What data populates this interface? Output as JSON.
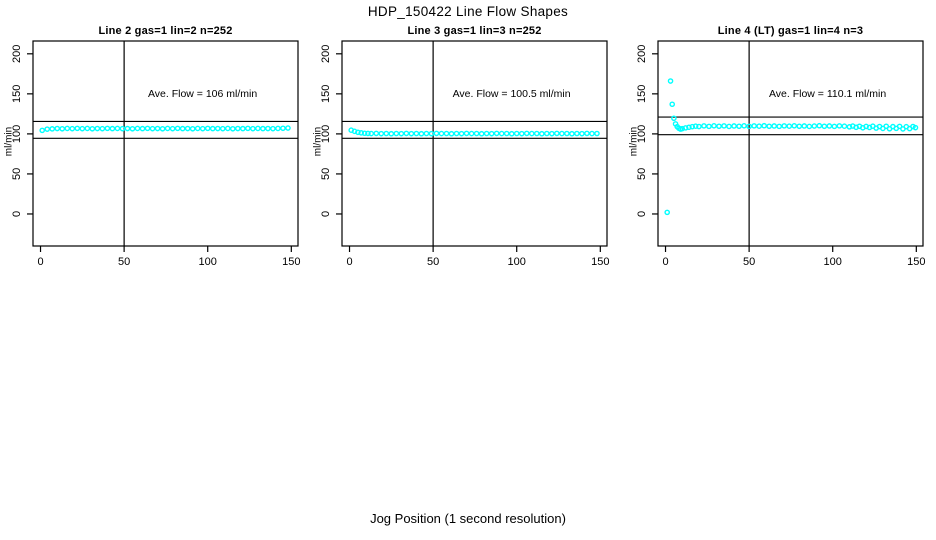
{
  "figure": {
    "title": "HDP_150422  Line Flow Shapes",
    "xlabel": "Jog Position (1 second resolution)",
    "colors": {
      "points": "#00FFFF",
      "axis": "#000000",
      "background": "#FFFFFF"
    }
  },
  "chart_data": [
    {
      "type": "scatter",
      "title": "Line 2 gas=1 lin=2 n=252",
      "annotation": "Ave. Flow =  106  ml/min",
      "ave_flow": 106,
      "ylabel": "ml/min",
      "xlim": [
        -4.5,
        154
      ],
      "ylim": [
        -40,
        216
      ],
      "xticks": [
        0,
        50,
        100,
        150
      ],
      "yticks": [
        0,
        50,
        100,
        150,
        200
      ],
      "vline": 50,
      "hlines": [
        115.5,
        94.5
      ],
      "grid": false,
      "points": [
        [
          1,
          104.4
        ],
        [
          4,
          105.9
        ],
        [
          7,
          106.3
        ],
        [
          10,
          106.7
        ],
        [
          13,
          106.4
        ],
        [
          16,
          106.8
        ],
        [
          19,
          106.5
        ],
        [
          22,
          106.9
        ],
        [
          25,
          106.5
        ],
        [
          28,
          106.8
        ],
        [
          31,
          106.4
        ],
        [
          34,
          106.7
        ],
        [
          37,
          106.5
        ],
        [
          40,
          106.9
        ],
        [
          43,
          106.6
        ],
        [
          46,
          106.8
        ],
        [
          49,
          106.5
        ],
        [
          52,
          106.7
        ],
        [
          55,
          106.4
        ],
        [
          58,
          106.8
        ],
        [
          61,
          106.6
        ],
        [
          64,
          106.9
        ],
        [
          67,
          106.5
        ],
        [
          70,
          106.7
        ],
        [
          73,
          106.4
        ],
        [
          76,
          106.8
        ],
        [
          79,
          106.5
        ],
        [
          82,
          106.9
        ],
        [
          85,
          106.6
        ],
        [
          88,
          106.7
        ],
        [
          91,
          106.4
        ],
        [
          94,
          106.8
        ],
        [
          97,
          106.5
        ],
        [
          100,
          106.9
        ],
        [
          103,
          106.6
        ],
        [
          106,
          106.7
        ],
        [
          109,
          106.5
        ],
        [
          112,
          106.8
        ],
        [
          115,
          106.4
        ],
        [
          118,
          106.7
        ],
        [
          121,
          106.6
        ],
        [
          124,
          106.9
        ],
        [
          127,
          106.5
        ],
        [
          130,
          106.8
        ],
        [
          133,
          106.6
        ],
        [
          136,
          106.7
        ],
        [
          139,
          106.5
        ],
        [
          142,
          106.8
        ],
        [
          145,
          107.0
        ],
        [
          148,
          107.3
        ]
      ]
    },
    {
      "type": "scatter",
      "title": "Line 3 gas=1 lin=3 n=252",
      "annotation": "Ave. Flow =  100.5  ml/min",
      "ave_flow": 100.5,
      "ylabel": "ml/min",
      "xlim": [
        -4.5,
        154
      ],
      "ylim": [
        -40,
        216
      ],
      "xticks": [
        0,
        50,
        100,
        150
      ],
      "yticks": [
        0,
        50,
        100,
        150,
        200
      ],
      "vline": 50,
      "hlines": [
        115.5,
        94.5
      ],
      "grid": false,
      "points": [
        [
          1,
          104.6
        ],
        [
          3,
          103.2
        ],
        [
          5,
          102.0
        ],
        [
          7,
          101.3
        ],
        [
          9,
          100.8
        ],
        [
          11,
          100.6
        ],
        [
          13,
          100.4
        ],
        [
          16,
          100.6
        ],
        [
          19,
          100.3
        ],
        [
          22,
          100.5
        ],
        [
          25,
          100.2
        ],
        [
          28,
          100.5
        ],
        [
          31,
          100.3
        ],
        [
          34,
          100.6
        ],
        [
          37,
          100.3
        ],
        [
          40,
          100.5
        ],
        [
          43,
          100.2
        ],
        [
          46,
          100.5
        ],
        [
          49,
          100.3
        ],
        [
          52,
          100.6
        ],
        [
          55,
          100.4
        ],
        [
          58,
          100.5
        ],
        [
          61,
          100.2
        ],
        [
          64,
          100.5
        ],
        [
          67,
          100.3
        ],
        [
          70,
          100.6
        ],
        [
          73,
          100.4
        ],
        [
          76,
          100.5
        ],
        [
          79,
          100.2
        ],
        [
          82,
          100.5
        ],
        [
          85,
          100.3
        ],
        [
          88,
          100.6
        ],
        [
          91,
          100.4
        ],
        [
          94,
          100.5
        ],
        [
          97,
          100.2
        ],
        [
          100,
          100.5
        ],
        [
          103,
          100.3
        ],
        [
          106,
          100.6
        ],
        [
          109,
          100.4
        ],
        [
          112,
          100.5
        ],
        [
          115,
          100.2
        ],
        [
          118,
          100.5
        ],
        [
          121,
          100.3
        ],
        [
          124,
          100.6
        ],
        [
          127,
          100.4
        ],
        [
          130,
          100.5
        ],
        [
          133,
          100.2
        ],
        [
          136,
          100.5
        ],
        [
          139,
          100.3
        ],
        [
          142,
          100.6
        ],
        [
          145,
          100.4
        ],
        [
          148,
          100.5
        ]
      ]
    },
    {
      "type": "scatter",
      "title": "Line 4 (LT) gas=1 lin=4 n=3",
      "annotation": "Ave. Flow =  110.1  ml/min",
      "ave_flow": 110.1,
      "ylabel": "ml/min",
      "xlim": [
        -4.5,
        154
      ],
      "ylim": [
        -40,
        216
      ],
      "xticks": [
        0,
        50,
        100,
        150
      ],
      "yticks": [
        0,
        50,
        100,
        150,
        200
      ],
      "vline": 50,
      "hlines": [
        121,
        99
      ],
      "grid": false,
      "points": [
        [
          1,
          2
        ],
        [
          3,
          166
        ],
        [
          4,
          137
        ],
        [
          5,
          119.5
        ],
        [
          6,
          112.5
        ],
        [
          7,
          109
        ],
        [
          8,
          107
        ],
        [
          9,
          106
        ],
        [
          10,
          106.5
        ],
        [
          12,
          107.5
        ],
        [
          14,
          108.3
        ],
        [
          16,
          109
        ],
        [
          18,
          109.6
        ],
        [
          20,
          109.2
        ],
        [
          23,
          110
        ],
        [
          26,
          109.4
        ],
        [
          29,
          110.1
        ],
        [
          32,
          109.5
        ],
        [
          35,
          110
        ],
        [
          38,
          109.3
        ],
        [
          41,
          109.9
        ],
        [
          44,
          109.5
        ],
        [
          47,
          110.1
        ],
        [
          50,
          109.4
        ],
        [
          53,
          110
        ],
        [
          56,
          109.6
        ],
        [
          59,
          110.2
        ],
        [
          62,
          109.5
        ],
        [
          65,
          109.9
        ],
        [
          68,
          109.4
        ],
        [
          71,
          110
        ],
        [
          74,
          109.6
        ],
        [
          77,
          110.1
        ],
        [
          80,
          109.5
        ],
        [
          83,
          109.9
        ],
        [
          86,
          109.3
        ],
        [
          89,
          109.8
        ],
        [
          92,
          110.2
        ],
        [
          95,
          109.5
        ],
        [
          98,
          109.9
        ],
        [
          101,
          109.4
        ],
        [
          104,
          110
        ],
        [
          107,
          109.6
        ],
        [
          110,
          108.8
        ],
        [
          112,
          109.8
        ],
        [
          114,
          108.2
        ],
        [
          116,
          109.5
        ],
        [
          118,
          107.6
        ],
        [
          120,
          109.3
        ],
        [
          122,
          108.0
        ],
        [
          124,
          109.6
        ],
        [
          126,
          107.2
        ],
        [
          128,
          109.2
        ],
        [
          130,
          106.8
        ],
        [
          132,
          109.5
        ],
        [
          134,
          106.4
        ],
        [
          136,
          109.1
        ],
        [
          138,
          106.9
        ],
        [
          140,
          109.4
        ],
        [
          142,
          106.2
        ],
        [
          144,
          109.0
        ],
        [
          146,
          106.6
        ],
        [
          148,
          109.2
        ],
        [
          149.5,
          107.8
        ]
      ]
    }
  ]
}
